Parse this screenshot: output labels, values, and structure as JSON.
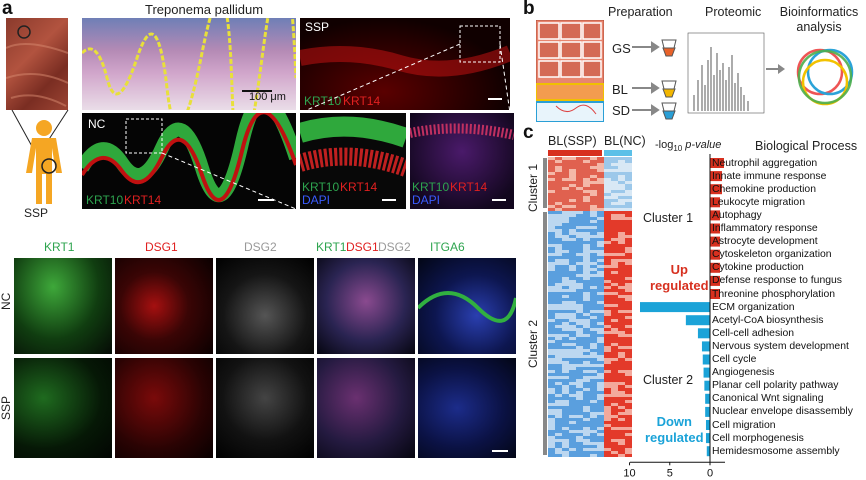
{
  "panel_a": {
    "letter": "a",
    "title": "Treponema pallidum",
    "scale_label": "100 μm",
    "ssp_label": "SSP",
    "nc_label": "NC",
    "krt10": "KRT10",
    "krt14": "KRT14",
    "dapi": "DAPI",
    "bottom_headers": [
      "KRT1",
      "DSG1",
      "DSG2",
      "KRT1",
      "DSG1",
      "DSG2",
      "ITGA6"
    ],
    "row_labels": [
      "NC",
      "SSP"
    ]
  },
  "panel_b": {
    "letter": "b",
    "steps": [
      "Preparation",
      "Proteomic",
      "Bioinformatics analysis"
    ],
    "samples": [
      "GS",
      "BL",
      "SD"
    ]
  },
  "panel_c": {
    "letter": "c",
    "heatmap_headers": [
      "BL(SSP)",
      "BL(NC)"
    ],
    "clusters": [
      "Cluster 1",
      "Cluster 2"
    ],
    "axis_title": "-log10 p-value",
    "axis_title_parts": {
      "pre": "-log",
      "sub": "10",
      "post": " p-value"
    },
    "column_title": "Biological Process",
    "up_label": "Up regulated",
    "down_label": "Down regulated",
    "up_line1": "Up",
    "up_line2": "regulated",
    "down_line1": "Down",
    "down_line2": "regulated",
    "ticks_left": [
      "10",
      "5",
      "0"
    ],
    "ticks_right": [
      "0",
      "5"
    ]
  },
  "chart_data": {
    "type": "bar",
    "title": "Biological Process",
    "xlabel": "-log10 p-value",
    "categories": [
      "Neutrophil aggregation",
      "Innate immune response",
      "Chemokine production",
      "Leukocyte migration",
      "Autophagy",
      "Inflammatory response",
      "Astrocyte development",
      "Cytoskeleton organization",
      "Cytokine production",
      "Defense response to fungus",
      "Threonine phosphorylation",
      "ECM organization",
      "Acetyl-CoA biosynthesis",
      "Cell-cell adhesion",
      "Nervous system development",
      "Cell cycle",
      "Angiogenesis",
      "Planar cell polarity pathway",
      "Canonical Wnt signaling",
      "Nuclear envelope disassembly",
      "Cell migration",
      "Cell morphogenesis",
      "Hemidesmosome assembly"
    ],
    "series": [
      {
        "name": "Up regulated",
        "color": "#d7301f",
        "values": [
          0.7,
          0.6,
          0.6,
          0.5,
          0.5,
          0.5,
          0.5,
          0.5,
          0.5,
          0.5,
          0.5,
          0,
          0,
          0,
          0,
          0,
          0,
          0,
          0,
          0,
          0,
          0,
          0
        ]
      },
      {
        "name": "Down regulated",
        "color": "#1ba3d8",
        "values": [
          0,
          0,
          0,
          0,
          0,
          0,
          0,
          0,
          0,
          0,
          0,
          8.7,
          3.0,
          1.5,
          1.0,
          0.9,
          0.8,
          0.7,
          0.6,
          0.6,
          0.5,
          0.5,
          0.4
        ]
      }
    ],
    "xlim": [
      0,
      10
    ]
  },
  "colors": {
    "red": "#d7301f",
    "blue": "#1ba3d8",
    "green": "#2ea44f"
  }
}
